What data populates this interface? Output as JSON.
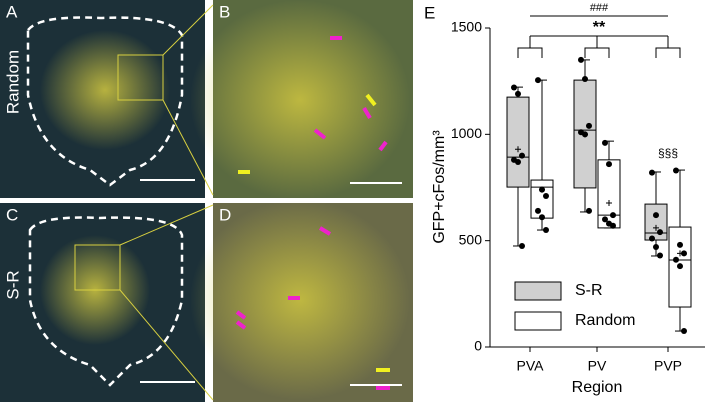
{
  "panels": {
    "A": "A",
    "B": "B",
    "C": "C",
    "D": "D",
    "E": "E"
  },
  "row_labels": [
    "Random",
    "S-R"
  ],
  "chart_data": {
    "type": "box",
    "ylabel": "GFP+cFos/mm³",
    "xlabel": "Region",
    "categories": [
      "PVA",
      "PV",
      "PVP"
    ],
    "ylim": [
      0,
      1500
    ],
    "yticks": [
      0,
      500,
      1000,
      1500
    ],
    "annotations": [
      "###",
      "**",
      "§§§"
    ],
    "legend": "lower left",
    "series": [
      {
        "name": "S-R",
        "color": "#d0d0d0",
        "boxes": [
          {
            "min": 475,
            "q1": 752,
            "median": 893,
            "q3": 1175,
            "max": 1222,
            "mean": 930,
            "points": [
              1220,
              1190,
              900,
              880,
              870,
              475
            ]
          },
          {
            "min": 635,
            "q1": 748,
            "median": 1020,
            "q3": 1255,
            "max": 1350,
            "mean": 1000,
            "points": [
              1350,
              1260,
              1040,
              1010,
              1000,
              640
            ]
          },
          {
            "min": 428,
            "q1": 503,
            "median": 536,
            "q3": 672,
            "max": 823,
            "mean": 560,
            "points": [
              820,
              620,
              540,
              510,
              470,
              430
            ]
          }
        ]
      },
      {
        "name": "Random",
        "color": "#ffffff",
        "boxes": [
          {
            "min": 550,
            "q1": 606,
            "median": 752,
            "q3": 785,
            "max": 1255,
            "mean": 740,
            "points": [
              1255,
              740,
              710,
              640,
              610,
              550
            ]
          },
          {
            "min": 560,
            "q1": 560,
            "median": 620,
            "q3": 880,
            "max": 968,
            "mean": 677,
            "points": [
              960,
              860,
              620,
              600,
              580,
              570
            ]
          },
          {
            "min": 75,
            "q1": 188,
            "median": 409,
            "q3": 564,
            "max": 832,
            "mean": 440,
            "points": [
              830,
              480,
              440,
              410,
              380,
              75
            ]
          }
        ]
      }
    ]
  }
}
